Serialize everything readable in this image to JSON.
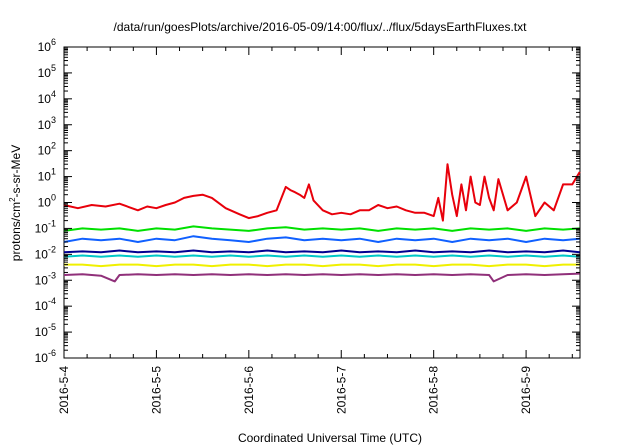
{
  "chart_data": {
    "type": "line",
    "title": "/data/run/goesPlots/archive/2016-05-09/14:00/flux/../flux/5daysEarthFluxes.txt",
    "xlabel": "Coordinated Universal Time (UTC)",
    "ylabel": {
      "base": "protons/cm",
      "sup": "2",
      "rest": "-s-sr-MeV"
    },
    "yscale": "log",
    "ylim_exp": [
      -6,
      6
    ],
    "xlim": [
      "2016-5-4",
      "2016-5-9 14:00"
    ],
    "x_ticks": [
      "2016-5-4",
      "2016-5-5",
      "2016-5-6",
      "2016-5-7",
      "2016-5-8",
      "2016-5-9"
    ],
    "y_ticks": [
      "10^6",
      "10^5",
      "10^4",
      "10^3",
      "10^2",
      "10^1",
      "10^0",
      "10^-1",
      "10^-2",
      "10^-3",
      "10^-4",
      "10^-5",
      "10^-6"
    ],
    "grid": false,
    "legend": "none",
    "series": [
      {
        "color": "#e8000b",
        "x": [
          0,
          0.15,
          0.3,
          0.45,
          0.6,
          0.8,
          0.9,
          1.0,
          1.1,
          1.2,
          1.3,
          1.4,
          1.5,
          1.6,
          1.75,
          1.9,
          2.0,
          2.1,
          2.2,
          2.3,
          2.4,
          2.45,
          2.5,
          2.55,
          2.6,
          2.65,
          2.7,
          2.8,
          2.9,
          3.0,
          3.1,
          3.2,
          3.3,
          3.4,
          3.5,
          3.6,
          3.7,
          3.8,
          3.9,
          4.0,
          4.05,
          4.1,
          4.15,
          4.2,
          4.25,
          4.3,
          4.35,
          4.4,
          4.45,
          4.5,
          4.55,
          4.6,
          4.65,
          4.7,
          4.8,
          4.9,
          5.0,
          5.1,
          5.2,
          5.3,
          5.4,
          5.5,
          5.58
        ],
        "y": [
          0.8,
          0.6,
          0.8,
          0.7,
          0.9,
          0.5,
          0.7,
          0.6,
          0.8,
          1.0,
          1.5,
          1.8,
          2.0,
          1.5,
          0.6,
          0.35,
          0.25,
          0.3,
          0.4,
          0.5,
          4.0,
          3.0,
          2.5,
          2.0,
          1.5,
          5.0,
          1.2,
          0.5,
          0.35,
          0.4,
          0.35,
          0.5,
          0.5,
          0.8,
          0.6,
          0.7,
          0.5,
          0.4,
          0.4,
          0.3,
          1.5,
          0.2,
          30,
          2.0,
          0.3,
          5.0,
          0.5,
          10,
          1.0,
          0.8,
          10,
          1.5,
          0.5,
          8.0,
          0.5,
          1.0,
          10,
          0.3,
          1.0,
          0.5,
          5.0,
          5.0,
          15
        ]
      },
      {
        "color": "#00e000",
        "x": [
          0,
          0.2,
          0.4,
          0.6,
          0.8,
          1.0,
          1.2,
          1.4,
          1.6,
          1.8,
          2.0,
          2.2,
          2.4,
          2.6,
          2.8,
          3.0,
          3.2,
          3.4,
          3.6,
          3.8,
          4.0,
          4.2,
          4.4,
          4.6,
          4.8,
          5.0,
          5.2,
          5.4,
          5.58
        ],
        "y": [
          0.08,
          0.1,
          0.09,
          0.1,
          0.08,
          0.1,
          0.09,
          0.12,
          0.1,
          0.09,
          0.08,
          0.1,
          0.11,
          0.09,
          0.1,
          0.09,
          0.1,
          0.08,
          0.1,
          0.09,
          0.1,
          0.08,
          0.1,
          0.09,
          0.1,
          0.08,
          0.1,
          0.09,
          0.1
        ]
      },
      {
        "color": "#1060ff",
        "x": [
          0,
          0.2,
          0.4,
          0.6,
          0.8,
          1.0,
          1.2,
          1.4,
          1.6,
          1.8,
          2.0,
          2.2,
          2.4,
          2.6,
          2.8,
          3.0,
          3.2,
          3.4,
          3.6,
          3.8,
          4.0,
          4.2,
          4.4,
          4.6,
          4.8,
          5.0,
          5.2,
          5.4,
          5.58
        ],
        "y": [
          0.03,
          0.04,
          0.035,
          0.04,
          0.03,
          0.04,
          0.035,
          0.05,
          0.04,
          0.035,
          0.03,
          0.04,
          0.045,
          0.035,
          0.04,
          0.035,
          0.04,
          0.03,
          0.04,
          0.035,
          0.04,
          0.03,
          0.04,
          0.035,
          0.04,
          0.03,
          0.04,
          0.035,
          0.04
        ]
      },
      {
        "color": "#00c8c8",
        "x": [
          0,
          0.2,
          0.4,
          0.6,
          0.8,
          1.0,
          1.2,
          1.4,
          1.6,
          1.8,
          2.0,
          2.2,
          2.4,
          2.6,
          2.8,
          3.0,
          3.2,
          3.4,
          3.6,
          3.8,
          4.0,
          4.2,
          4.4,
          4.6,
          4.8,
          5.0,
          5.2,
          5.4,
          5.58
        ],
        "y": [
          0.008,
          0.009,
          0.008,
          0.009,
          0.008,
          0.009,
          0.008,
          0.009,
          0.008,
          0.009,
          0.008,
          0.009,
          0.008,
          0.009,
          0.008,
          0.009,
          0.008,
          0.009,
          0.008,
          0.009,
          0.008,
          0.009,
          0.008,
          0.009,
          0.008,
          0.009,
          0.008,
          0.009,
          0.008
        ]
      },
      {
        "color": "#000090",
        "x": [
          0,
          0.2,
          0.4,
          0.6,
          0.8,
          1.0,
          1.2,
          1.4,
          1.6,
          1.8,
          2.0,
          2.2,
          2.4,
          2.6,
          2.8,
          3.0,
          3.2,
          3.4,
          3.6,
          3.8,
          4.0,
          4.2,
          4.4,
          4.6,
          4.8,
          5.0,
          5.2,
          5.4,
          5.58
        ],
        "y": [
          0.012,
          0.013,
          0.012,
          0.014,
          0.012,
          0.013,
          0.012,
          0.014,
          0.012,
          0.013,
          0.012,
          0.014,
          0.012,
          0.013,
          0.012,
          0.014,
          0.012,
          0.013,
          0.012,
          0.014,
          0.012,
          0.013,
          0.012,
          0.014,
          0.012,
          0.013,
          0.012,
          0.014,
          0.012
        ]
      },
      {
        "color": "#f0f000",
        "x": [
          0,
          0.2,
          0.4,
          0.6,
          0.8,
          1.0,
          1.2,
          1.4,
          1.6,
          1.8,
          2.0,
          2.2,
          2.4,
          2.6,
          2.8,
          3.0,
          3.2,
          3.4,
          3.6,
          3.8,
          4.0,
          4.2,
          4.4,
          4.6,
          4.8,
          5.0,
          5.2,
          5.4,
          5.58
        ],
        "y": [
          0.004,
          0.004,
          0.0035,
          0.004,
          0.004,
          0.0035,
          0.004,
          0.004,
          0.0035,
          0.004,
          0.004,
          0.0035,
          0.004,
          0.004,
          0.0035,
          0.004,
          0.004,
          0.0035,
          0.004,
          0.004,
          0.0035,
          0.004,
          0.004,
          0.0035,
          0.004,
          0.004,
          0.0035,
          0.004,
          0.004
        ]
      },
      {
        "color": "#90307a",
        "x": [
          0,
          0.2,
          0.4,
          0.55,
          0.6,
          0.8,
          1.0,
          1.2,
          1.4,
          1.6,
          1.8,
          2.0,
          2.2,
          2.4,
          2.6,
          2.8,
          3.0,
          3.2,
          3.4,
          3.6,
          3.8,
          4.0,
          4.2,
          4.4,
          4.6,
          4.65,
          4.8,
          5.0,
          5.2,
          5.4,
          5.58
        ],
        "y": [
          0.0016,
          0.0017,
          0.0015,
          0.0009,
          0.0016,
          0.0017,
          0.0016,
          0.0017,
          0.0016,
          0.0017,
          0.0016,
          0.0017,
          0.0016,
          0.0017,
          0.0016,
          0.0017,
          0.0016,
          0.0017,
          0.0016,
          0.0017,
          0.0016,
          0.0017,
          0.0016,
          0.0017,
          0.0016,
          0.0009,
          0.0016,
          0.0017,
          0.0016,
          0.0017,
          0.0018
        ]
      }
    ]
  }
}
